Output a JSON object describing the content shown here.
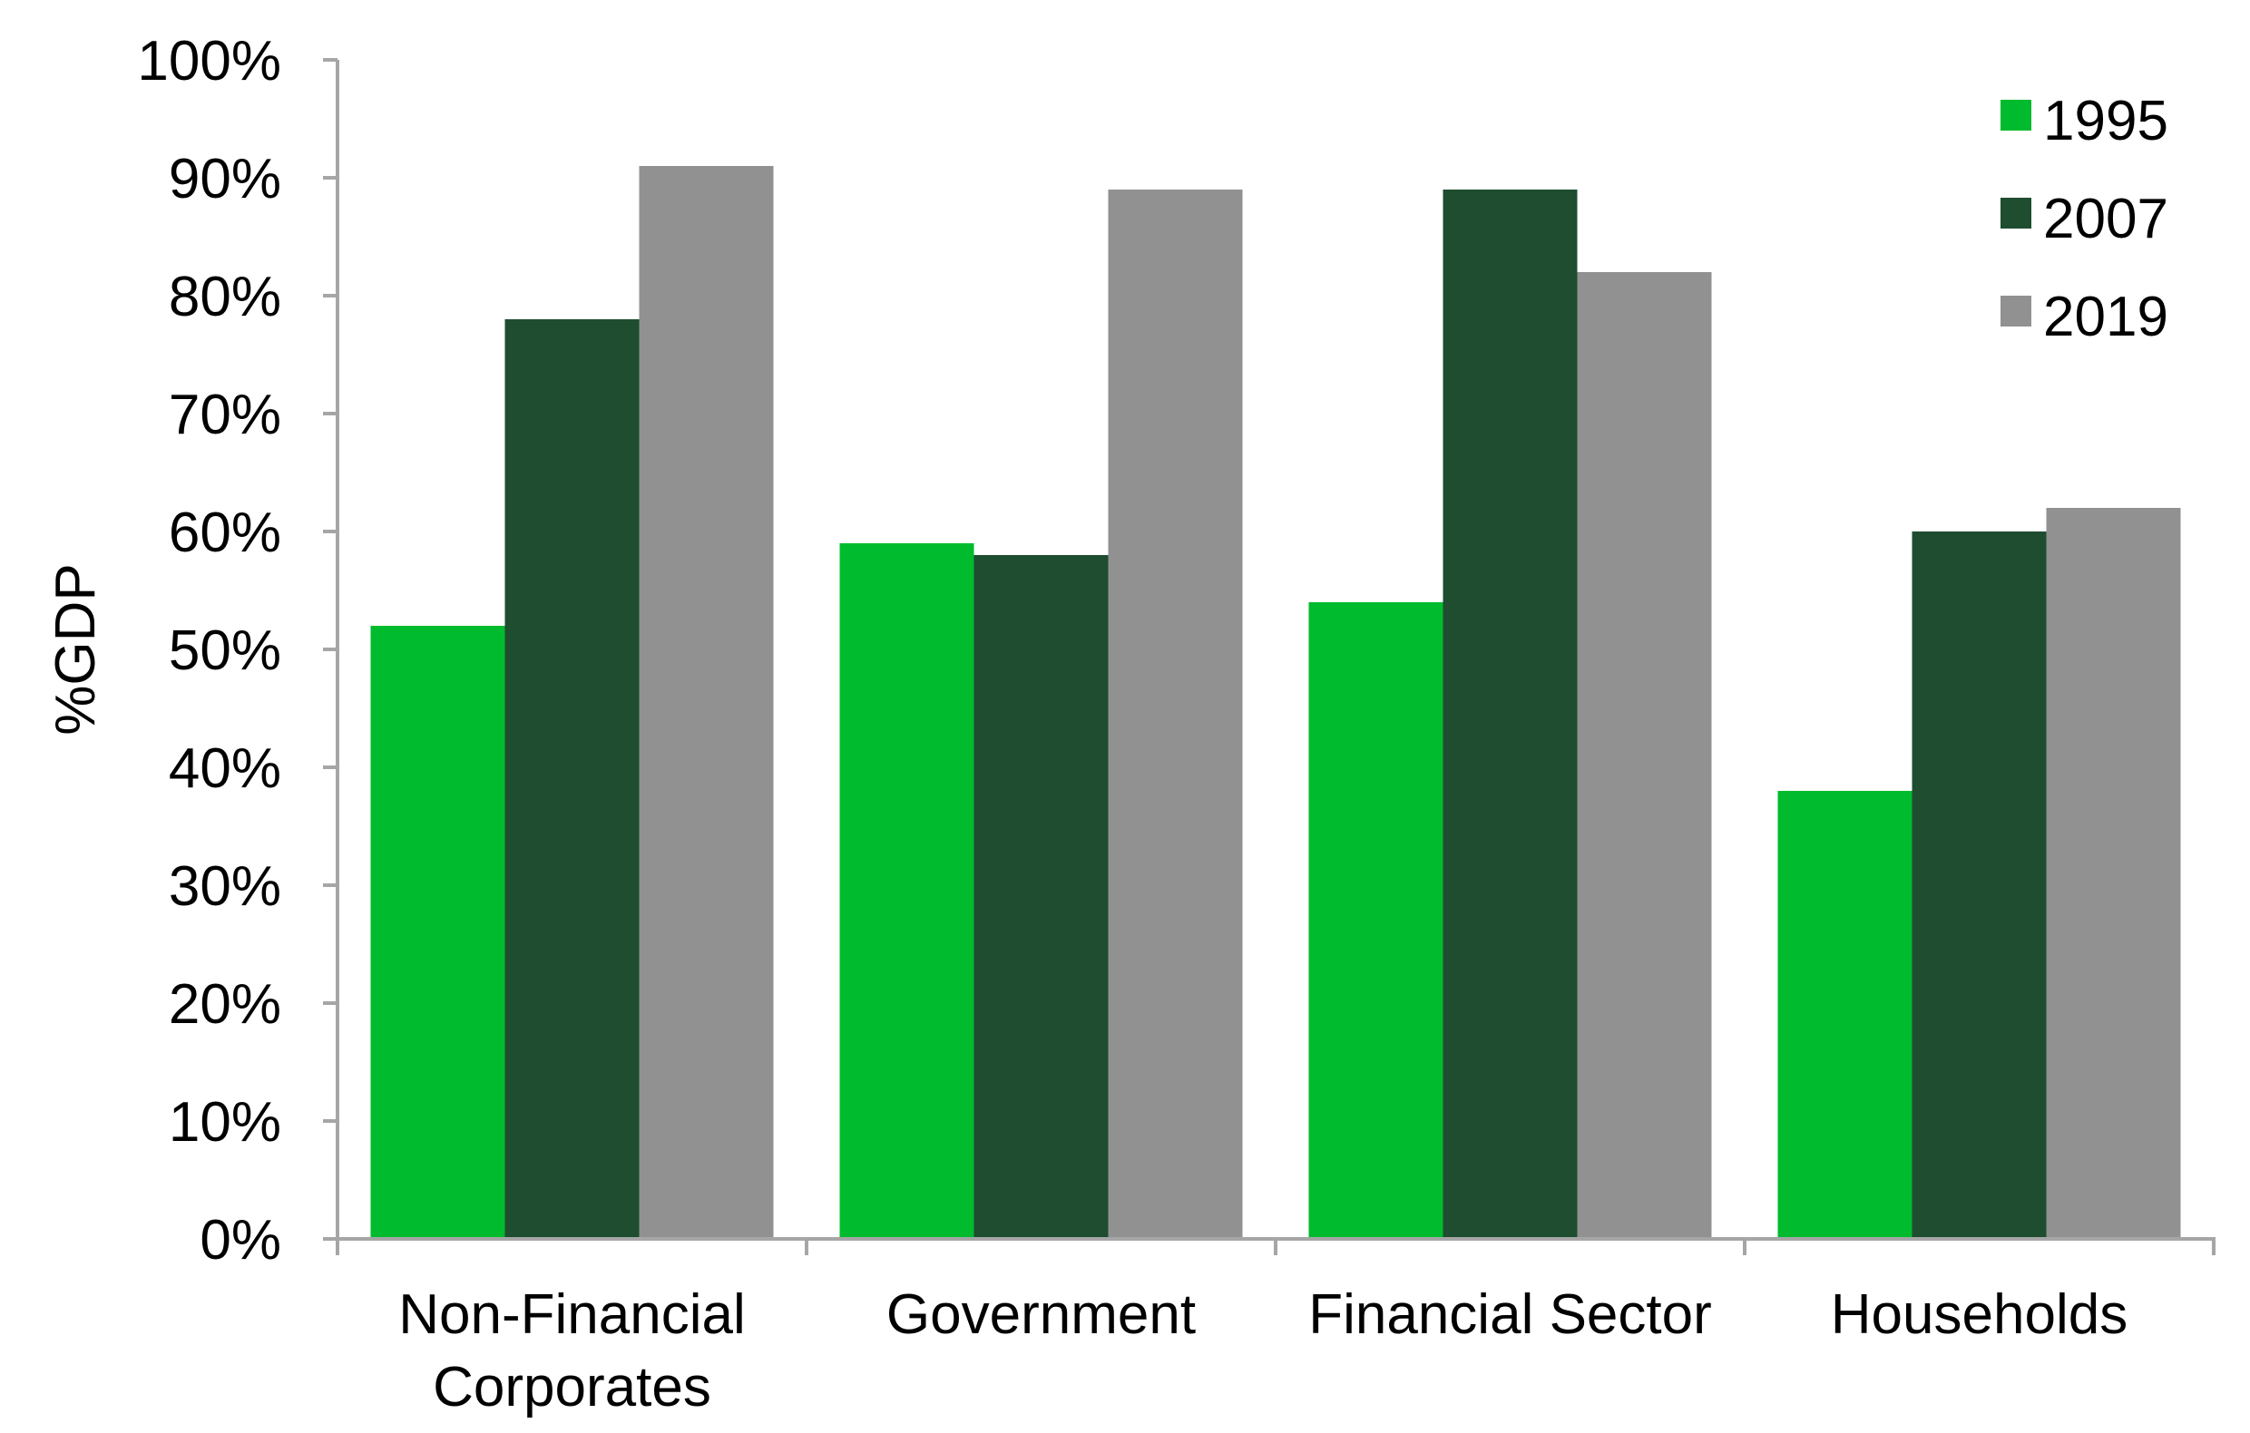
{
  "chart_data": {
    "type": "bar",
    "title": "",
    "xlabel": "",
    "ylabel": "%GDP",
    "ylim": [
      0,
      100
    ],
    "y_ticks": [
      "0%",
      "10%",
      "20%",
      "30%",
      "40%",
      "50%",
      "60%",
      "70%",
      "80%",
      "90%",
      "100%"
    ],
    "categories": [
      [
        "Non-Financial",
        "Corporates"
      ],
      [
        "Government"
      ],
      [
        "Financial Sector"
      ],
      [
        "Households"
      ]
    ],
    "series": [
      {
        "name": "1995",
        "color": "#00BB2D",
        "values": [
          52,
          59,
          54,
          38
        ]
      },
      {
        "name": "2007",
        "color": "#1E4D30",
        "values": [
          78,
          58,
          89,
          60
        ]
      },
      {
        "name": "2019",
        "color": "#919191",
        "values": [
          91,
          89,
          82,
          62
        ]
      }
    ],
    "legend_position": "top-right",
    "grid": false
  }
}
